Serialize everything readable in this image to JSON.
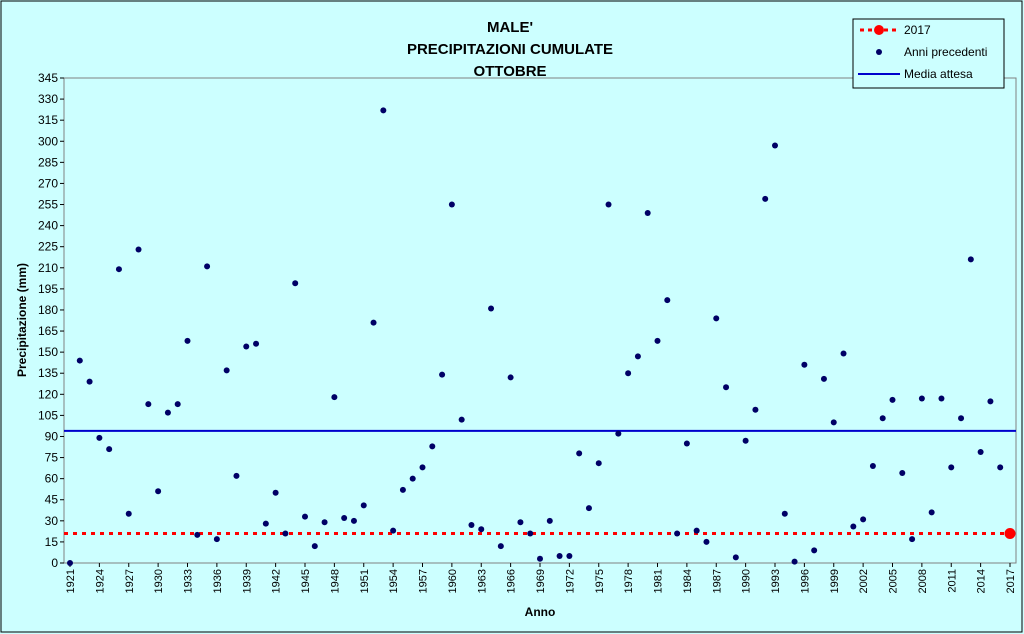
{
  "chart_data": {
    "type": "scatter",
    "title": [
      "MALE'",
      "PRECIPITAZIONI CUMULATE",
      "OTTOBRE"
    ],
    "x_label": "Anno",
    "y_label": "Precipitazione (mm)",
    "xlim": [
      1921,
      2017
    ],
    "ylim": [
      0,
      345
    ],
    "xticks": [
      1921,
      1924,
      1927,
      1930,
      1933,
      1936,
      1939,
      1942,
      1945,
      1948,
      1951,
      1954,
      1957,
      1960,
      1963,
      1966,
      1969,
      1972,
      1975,
      1978,
      1981,
      1984,
      1987,
      1990,
      1993,
      1996,
      1999,
      2002,
      2005,
      2008,
      2011,
      2014,
      2017
    ],
    "yticks": [
      0,
      15,
      30,
      45,
      60,
      75,
      90,
      105,
      120,
      135,
      150,
      165,
      180,
      195,
      210,
      225,
      240,
      255,
      270,
      285,
      300,
      315,
      330,
      345
    ],
    "grid": false,
    "legend": "top-right",
    "series": [
      {
        "name": "2017",
        "color": "#ff0000",
        "x": [
          2017
        ],
        "values": [
          21
        ]
      },
      {
        "name": "Anni precedenti",
        "color": "#000066",
        "x": [
          1921,
          1922,
          1923,
          1924,
          1925,
          1926,
          1927,
          1928,
          1929,
          1930,
          1931,
          1932,
          1933,
          1934,
          1935,
          1936,
          1937,
          1938,
          1939,
          1940,
          1941,
          1942,
          1943,
          1944,
          1945,
          1946,
          1947,
          1948,
          1949,
          1950,
          1951,
          1952,
          1953,
          1954,
          1955,
          1956,
          1957,
          1958,
          1959,
          1960,
          1961,
          1962,
          1963,
          1964,
          1965,
          1966,
          1967,
          1968,
          1969,
          1970,
          1971,
          1972,
          1973,
          1974,
          1975,
          1976,
          1977,
          1978,
          1979,
          1980,
          1981,
          1982,
          1983,
          1984,
          1985,
          1986,
          1987,
          1988,
          1989,
          1990,
          1991,
          1992,
          1993,
          1994,
          1995,
          1996,
          1997,
          1998,
          1999,
          2000,
          2001,
          2002,
          2003,
          2004,
          2005,
          2006,
          2007,
          2008,
          2009,
          2010,
          2011,
          2012,
          2013,
          2014,
          2015,
          2016
        ],
        "values": [
          0,
          144,
          129,
          89,
          81,
          209,
          35,
          223,
          113,
          51,
          107,
          113,
          158,
          20,
          211,
          17,
          137,
          62,
          154,
          156,
          28,
          50,
          21,
          199,
          33,
          12,
          29,
          118,
          32,
          30,
          41,
          171,
          322,
          23,
          52,
          60,
          68,
          83,
          134,
          255,
          102,
          27,
          24,
          181,
          12,
          132,
          29,
          21,
          3,
          30,
          5,
          5,
          78,
          39,
          71,
          255,
          92,
          135,
          147,
          249,
          158,
          187,
          21,
          85,
          23,
          15,
          174,
          125,
          4,
          87,
          109,
          259,
          297,
          35,
          1,
          141,
          9,
          131,
          100,
          149,
          26,
          31,
          69,
          103,
          116,
          64,
          17,
          117,
          36,
          117,
          68,
          103,
          216,
          79,
          115,
          68
        ]
      },
      {
        "name": "Media attesa",
        "color": "#0000cc",
        "values": [
          94
        ]
      }
    ]
  }
}
